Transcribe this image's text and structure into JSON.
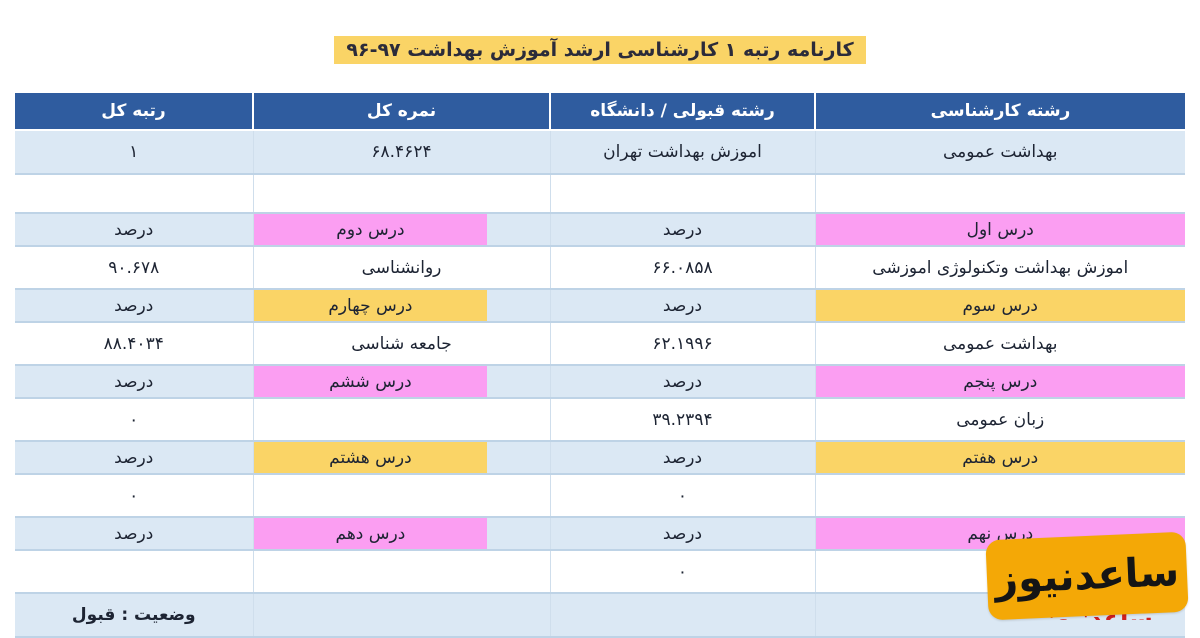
{
  "title": "کارنامه رتبه ۱ کارشناسی ارشد آموزش بهداشت ۹۷-۹۶",
  "table": {
    "headers": [
      "رشته کارشناسی",
      "رشته قبولی / دانشگاه",
      "نمره کل",
      "رتبه کل"
    ],
    "summary": {
      "bachelor_field": "بهداشت عمومی",
      "accepted_field_university": "اموزش بهداشت  تهران",
      "total_score": "۶۸.۴۶۲۴",
      "total_rank": "۱"
    },
    "percent_label": "درصد",
    "courses": [
      {
        "highlight": "pink",
        "label_a": "درس اول",
        "name_a": "اموزش بهداشت وتکنولوژی اموزشی",
        "score_a": "۶۶.۰۸۵۸",
        "label_b": "درس دوم",
        "name_b": "روانشناسی",
        "score_b": "۹۰.۶۷۸"
      },
      {
        "highlight": "yellow",
        "label_a": "درس سوم",
        "name_a": "بهداشت عمومی",
        "score_a": "۶۲.۱۹۹۶",
        "label_b": "درس چهارم",
        "name_b": "جامعه شناسی",
        "score_b": "۸۸.۴۰۳۴"
      },
      {
        "highlight": "pink",
        "label_a": "درس پنجم",
        "name_a": "زبان عمومی",
        "score_a": "۳۹.۲۳۹۴",
        "label_b": "درس ششم",
        "name_b": "",
        "score_b": "۰"
      },
      {
        "highlight": "yellow",
        "label_a": "درس هفتم",
        "name_a": "",
        "score_a": "۰",
        "label_b": "درس هشتم",
        "name_b": "",
        "score_b": "۰"
      },
      {
        "highlight": "pink",
        "label_a": "درس نهم",
        "name_a": "",
        "score_a": "۰",
        "label_b": "درس دهم",
        "name_b": "",
        "score_b": ""
      }
    ],
    "status_label": "وضعیت : قبول"
  },
  "watermark": {
    "text": "ساعدنیوز"
  },
  "colors": {
    "header_bg": "#2f5c9f",
    "row_blue": "#dbe8f4",
    "highlight_pink": "#fb9ef2",
    "highlight_yellow": "#fad466",
    "title_bg": "#fad466",
    "watermark_bg": "#f4a806",
    "watermark_sub_red": "#d02020"
  }
}
